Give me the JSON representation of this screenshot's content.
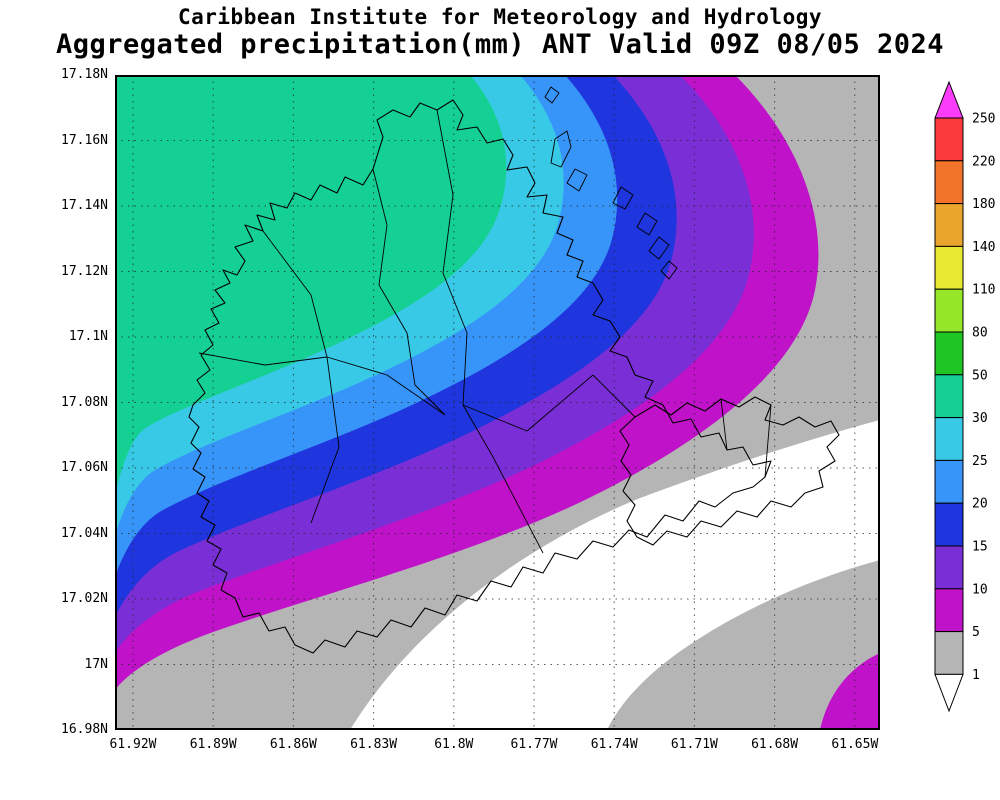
{
  "header": {
    "line1": "Caribbean Institute for Meteorology and Hydrology",
    "line2": "Aggregated precipitation(mm) ANT Valid 09Z 08/05 2024"
  },
  "chart_data": {
    "type": "heatmap",
    "variant": "filled-contour precipitation map",
    "title": "Aggregated precipitation(mm) ANT Valid 09Z 08/05 2024",
    "region_code": "ANT",
    "valid_time": "09Z 08/05 2024",
    "units": "mm",
    "lat_ticks": [
      "17.18N",
      "17.16N",
      "17.14N",
      "17.12N",
      "17.1N",
      "17.08N",
      "17.06N",
      "17.04N",
      "17.02N",
      "17N",
      "16.98N"
    ],
    "lon_ticks": [
      "61.92W",
      "61.89W",
      "61.86W",
      "61.83W",
      "61.8W",
      "61.77W",
      "61.74W",
      "61.71W",
      "61.68W",
      "61.65W"
    ],
    "contour_levels_mm": [
      1,
      5,
      10,
      15,
      20,
      25,
      30,
      50,
      80,
      110,
      140,
      180,
      220,
      250
    ],
    "field_summary": {
      "max_band_mm": "30-50",
      "max_location": "northwest quadrant of domain",
      "min_band_mm": "<1",
      "min_location": "diagonal band across southeast",
      "gradient": "precipitation decreases from northwest to southeast; small >5 mm patch at extreme southeast corner",
      "grid": "dotted graticule at 0.02 deg latitude / 0.03 deg longitude"
    }
  },
  "colorbar": {
    "labels": [
      "250",
      "220",
      "180",
      "140",
      "110",
      "80",
      "50",
      "30",
      "25",
      "20",
      "15",
      "10",
      "5",
      "1"
    ],
    "segment_colors_top_to_bottom": [
      "#fb3b3b",
      "#f1742a",
      "#eaa62c",
      "#e9e934",
      "#96e62a",
      "#1fc522",
      "#15d093",
      "#38c9e6",
      "#3795fa",
      "#1f35dd",
      "#7a2fd6",
      "#c012c8",
      "#b5b5b5"
    ],
    "over_color": "#fb3dfb",
    "under_color": "#ffffff"
  },
  "map_colors": {
    "gray_1_5": "#b5b5b5",
    "magenta_5_10": "#c012c8",
    "purple_10_15": "#7a2fd6",
    "blue_15_20": "#1f35dd",
    "lightblue_20_25": "#3795fa",
    "cyan_25_30": "#38c9e6",
    "teal_30_50": "#15d093",
    "white_below_1": "#ffffff",
    "coastline": "#000000"
  }
}
